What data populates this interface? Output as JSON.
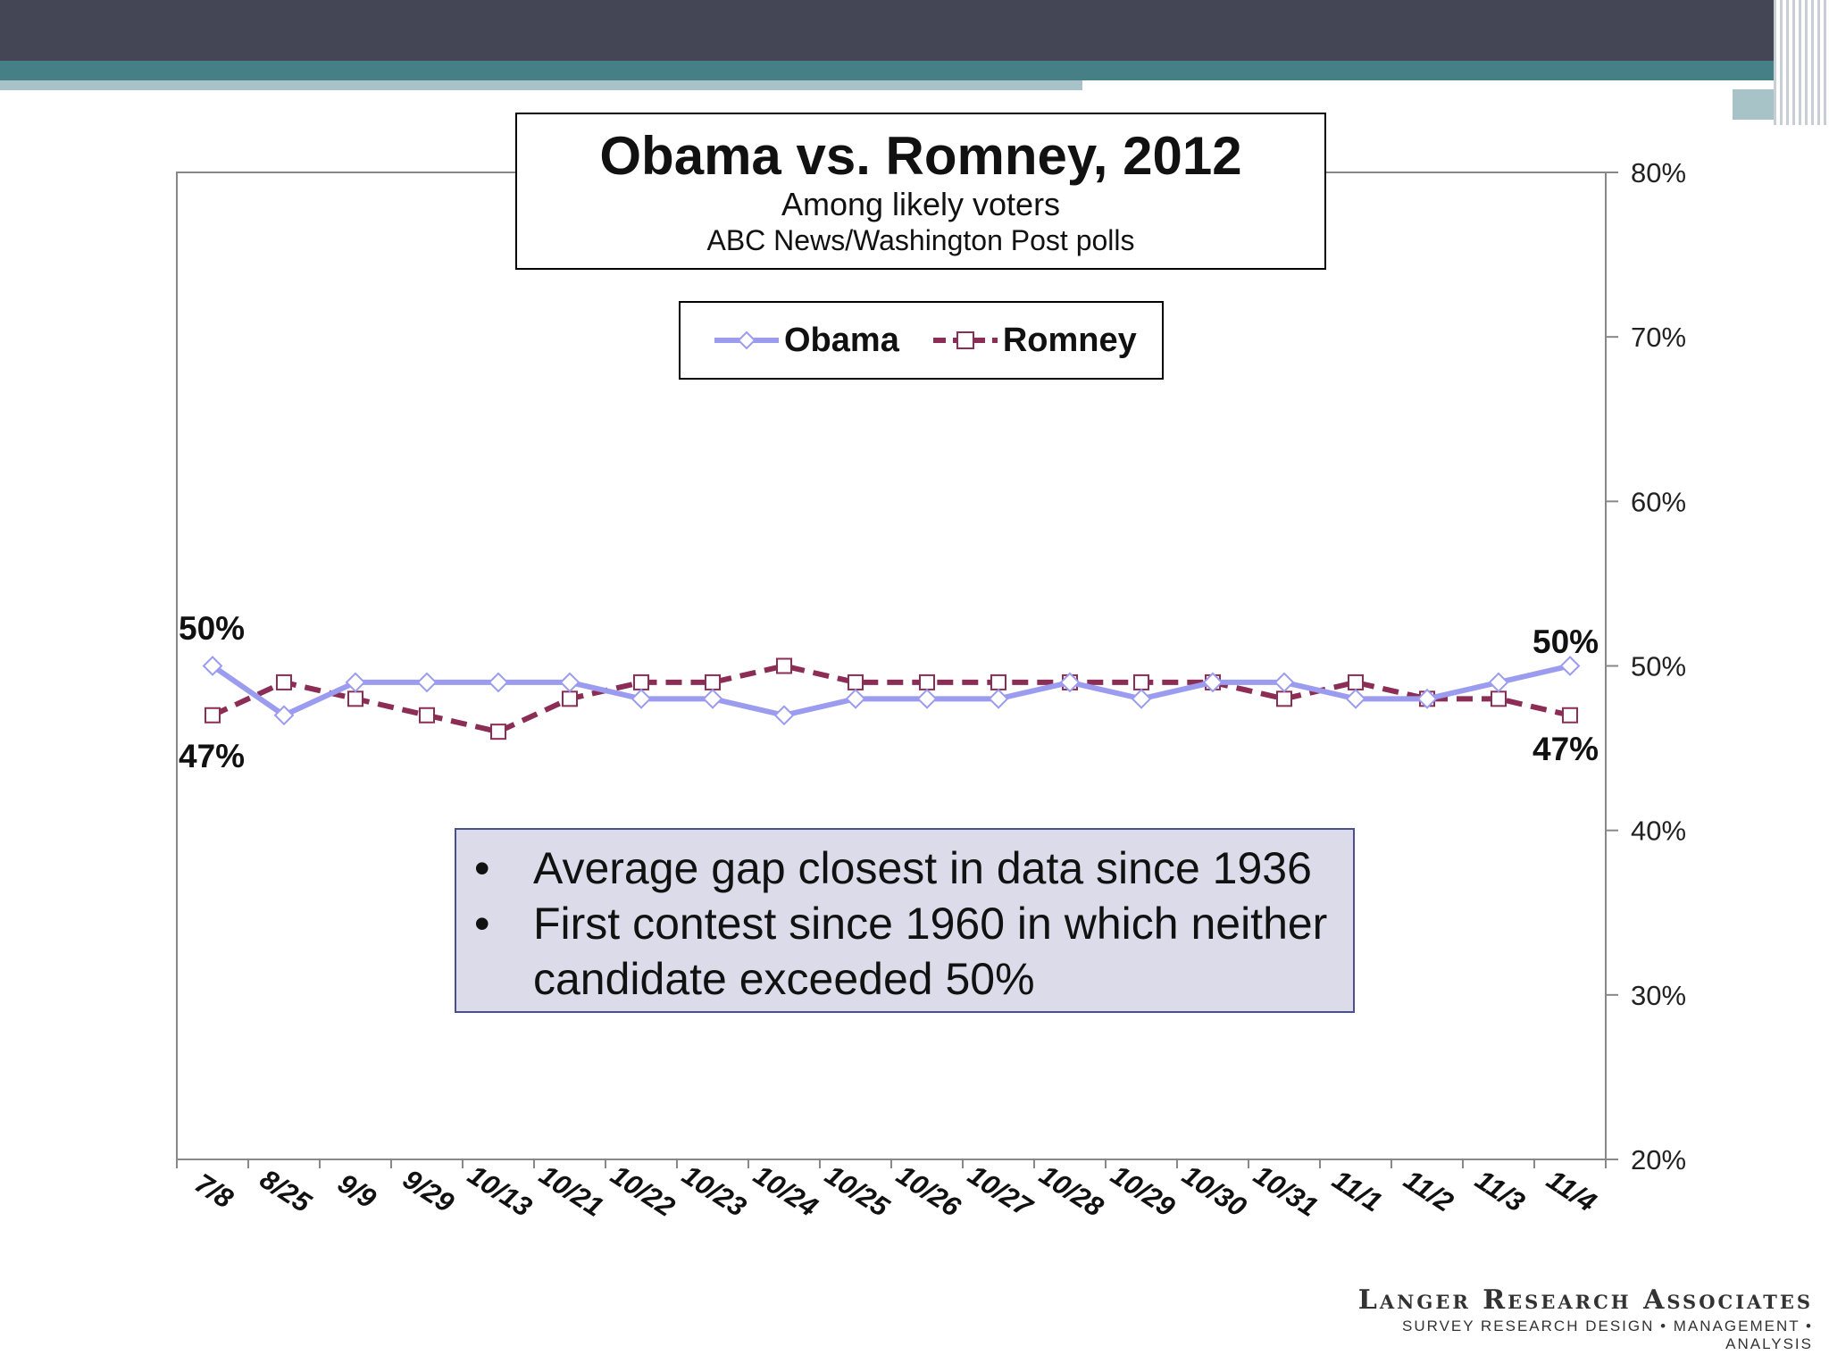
{
  "slide": {
    "brand_name": "Langer Research Associates",
    "brand_tagline": "SURVEY RESEARCH DESIGN • MANAGEMENT • ANALYSIS"
  },
  "notes": [
    "Average gap closest in data since 1936",
    "First contest since 1960 in which neither candidate exceeded 50%"
  ],
  "chart_data": {
    "type": "line",
    "title": "Obama vs. Romney, 2012",
    "subtitle": "Among likely voters",
    "source": "ABC News/Washington  Post polls",
    "categories": [
      "7/8",
      "8/25",
      "9/9",
      "9/29",
      "10/13",
      "10/21",
      "10/22",
      "10/23",
      "10/24",
      "10/25",
      "10/26",
      "10/27",
      "10/28",
      "10/29",
      "10/30",
      "10/31",
      "11/1",
      "11/2",
      "11/3",
      "11/4"
    ],
    "series": [
      {
        "name": "Obama",
        "color": "#9b9bf0",
        "marker": "diamond-open",
        "line": "solid",
        "values": [
          50,
          47,
          49,
          49,
          49,
          49,
          48,
          48,
          47,
          48,
          48,
          48,
          49,
          48,
          49,
          49,
          48,
          48,
          49,
          50
        ]
      },
      {
        "name": "Romney",
        "color": "#8b2d55",
        "marker": "square-open",
        "line": "dashed",
        "values": [
          47,
          49,
          48,
          47,
          46,
          48,
          49,
          49,
          50,
          49,
          49,
          49,
          49,
          49,
          49,
          48,
          49,
          48,
          48,
          47
        ]
      }
    ],
    "end_labels": {
      "first": {
        "obama": "50%",
        "romney": "47%"
      },
      "last": {
        "obama": "50%",
        "romney": "47%"
      }
    },
    "ylim": [
      20,
      80
    ],
    "yticks": [
      20,
      30,
      40,
      50,
      60,
      70,
      80
    ],
    "ytick_labels": [
      "20%",
      "30%",
      "40%",
      "50%",
      "60%",
      "70%",
      "80%"
    ],
    "y_axis_side": "right",
    "legend": "top-center",
    "grid": false
  }
}
